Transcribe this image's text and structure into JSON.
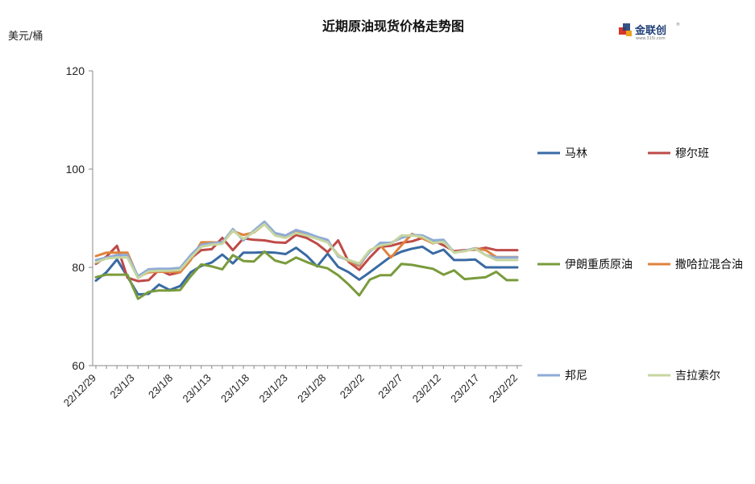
{
  "logo": {
    "brand_text": "金联创",
    "url_text": "www.315i.com",
    "registered_mark": "®"
  },
  "chart_data": {
    "type": "line",
    "title": "近期原油现货价格走势图",
    "ylabel": "美元/桶",
    "xlabel": "",
    "ylim": [
      60,
      120
    ],
    "yticks": [
      60,
      80,
      100,
      120
    ],
    "grid": false,
    "legend_position": "right",
    "x": [
      "22/12/29",
      "22/12/30",
      "23/1/2",
      "23/1/3",
      "23/1/4",
      "23/1/5",
      "23/1/6",
      "23/1/9",
      "23/1/10",
      "23/1/11",
      "23/1/12",
      "23/1/13",
      "23/1/16",
      "23/1/17",
      "23/1/18",
      "23/1/19",
      "23/1/20",
      "23/1/23",
      "23/1/24",
      "23/1/25",
      "23/1/26",
      "23/1/27",
      "23/1/30",
      "23/1/31",
      "23/2/1",
      "23/2/2",
      "23/2/3",
      "23/2/6",
      "23/2/7",
      "23/2/8",
      "23/2/9",
      "23/2/10",
      "23/2/13",
      "23/2/14",
      "23/2/15",
      "23/2/16",
      "23/2/17",
      "23/2/20",
      "23/2/21",
      "23/2/22",
      "23/2/23"
    ],
    "x_tick_labels": [
      "22/12/29",
      "23/1/3",
      "23/1/8",
      "23/1/13",
      "23/1/18",
      "23/1/23",
      "23/1/28",
      "23/2/2",
      "23/2/7",
      "23/2/12",
      "23/2/17",
      "23/2/22"
    ],
    "series": [
      {
        "name": "马林",
        "color": "#3a6aa4",
        "values": [
          77.3,
          79.0,
          81.6,
          78.1,
          74.5,
          74.6,
          76.5,
          75.4,
          76.2,
          79.0,
          80.3,
          81.0,
          82.6,
          80.8,
          83.0,
          83.0,
          83.1,
          83.0,
          82.7,
          84.0,
          82.4,
          80.2,
          82.8,
          80.1,
          79.0,
          77.5,
          79.0,
          80.6,
          82.2,
          83.2,
          83.8,
          84.2,
          82.8,
          83.6,
          81.5,
          81.5,
          81.6,
          80.0,
          80.0,
          80.0,
          80.0
        ]
      },
      {
        "name": "穆尔班",
        "color": "#be4b48",
        "values": [
          80.7,
          82.2,
          84.4,
          77.9,
          77.2,
          77.4,
          79.5,
          78.5,
          79.0,
          81.8,
          83.5,
          83.7,
          86.0,
          83.5,
          85.9,
          85.6,
          85.5,
          85.1,
          85.0,
          86.6,
          86.0,
          84.8,
          83.1,
          85.5,
          81.1,
          79.5,
          82.0,
          84.2,
          84.4,
          85.0,
          85.3,
          86.0,
          85.5,
          84.5,
          83.3,
          83.5,
          83.6,
          84.0,
          83.5,
          83.5,
          83.5
        ]
      },
      {
        "name": "伊朗重质原油",
        "color": "#7a9b3c",
        "values": [
          78.0,
          78.5,
          78.5,
          78.5,
          73.6,
          75.0,
          75.3,
          75.3,
          75.4,
          78.2,
          80.6,
          80.2,
          79.6,
          82.5,
          81.3,
          81.2,
          83.2,
          81.4,
          80.8,
          82.0,
          81.1,
          80.3,
          79.8,
          78.4,
          76.5,
          74.3,
          77.5,
          78.4,
          78.4,
          80.7,
          80.5,
          80.1,
          79.7,
          78.5,
          79.4,
          77.6,
          77.8,
          78.0,
          79.1,
          77.4,
          77.4
        ]
      },
      {
        "name": "撒哈拉混合油",
        "color": "#e0823b",
        "values": [
          82.3,
          83.0,
          83.0,
          83.0,
          78.0,
          79.0,
          79.1,
          79.1,
          79.0,
          81.5,
          85.1,
          85.1,
          85.0,
          87.4,
          86.6,
          87.1,
          88.8,
          86.8,
          86.4,
          87.4,
          86.5,
          86.0,
          85.2,
          82.5,
          81.3,
          80.3,
          83.4,
          84.5,
          82.0,
          84.5,
          86.8,
          85.9,
          84.9,
          85.4,
          83.1,
          83.3,
          83.9,
          83.5,
          82.1,
          82.1,
          82.1
        ]
      },
      {
        "name": "邦尼",
        "color": "#8eaad8",
        "values": [
          81.5,
          82.0,
          82.5,
          82.5,
          78.2,
          79.6,
          79.7,
          79.7,
          79.9,
          82.5,
          84.6,
          84.9,
          85.1,
          87.8,
          85.5,
          87.5,
          89.3,
          87.0,
          86.5,
          87.6,
          87.0,
          86.2,
          85.6,
          82.2,
          81.5,
          80.6,
          83.2,
          85.0,
          85.0,
          86.0,
          86.6,
          86.5,
          85.5,
          85.6,
          83.0,
          83.4,
          83.9,
          82.5,
          82.0,
          82.0,
          82.0
        ]
      },
      {
        "name": "吉拉索尔",
        "color": "#c6d6a0",
        "values": [
          81.0,
          81.8,
          82.0,
          82.0,
          77.8,
          79.2,
          79.3,
          79.3,
          79.5,
          82.0,
          84.2,
          84.6,
          84.8,
          87.5,
          85.8,
          87.2,
          88.8,
          86.5,
          86.0,
          87.0,
          86.5,
          85.8,
          85.1,
          82.4,
          81.5,
          80.8,
          83.5,
          84.5,
          84.8,
          86.5,
          86.5,
          86.2,
          85.0,
          85.2,
          83.0,
          83.3,
          83.8,
          82.5,
          81.5,
          81.5,
          81.5
        ]
      }
    ]
  }
}
